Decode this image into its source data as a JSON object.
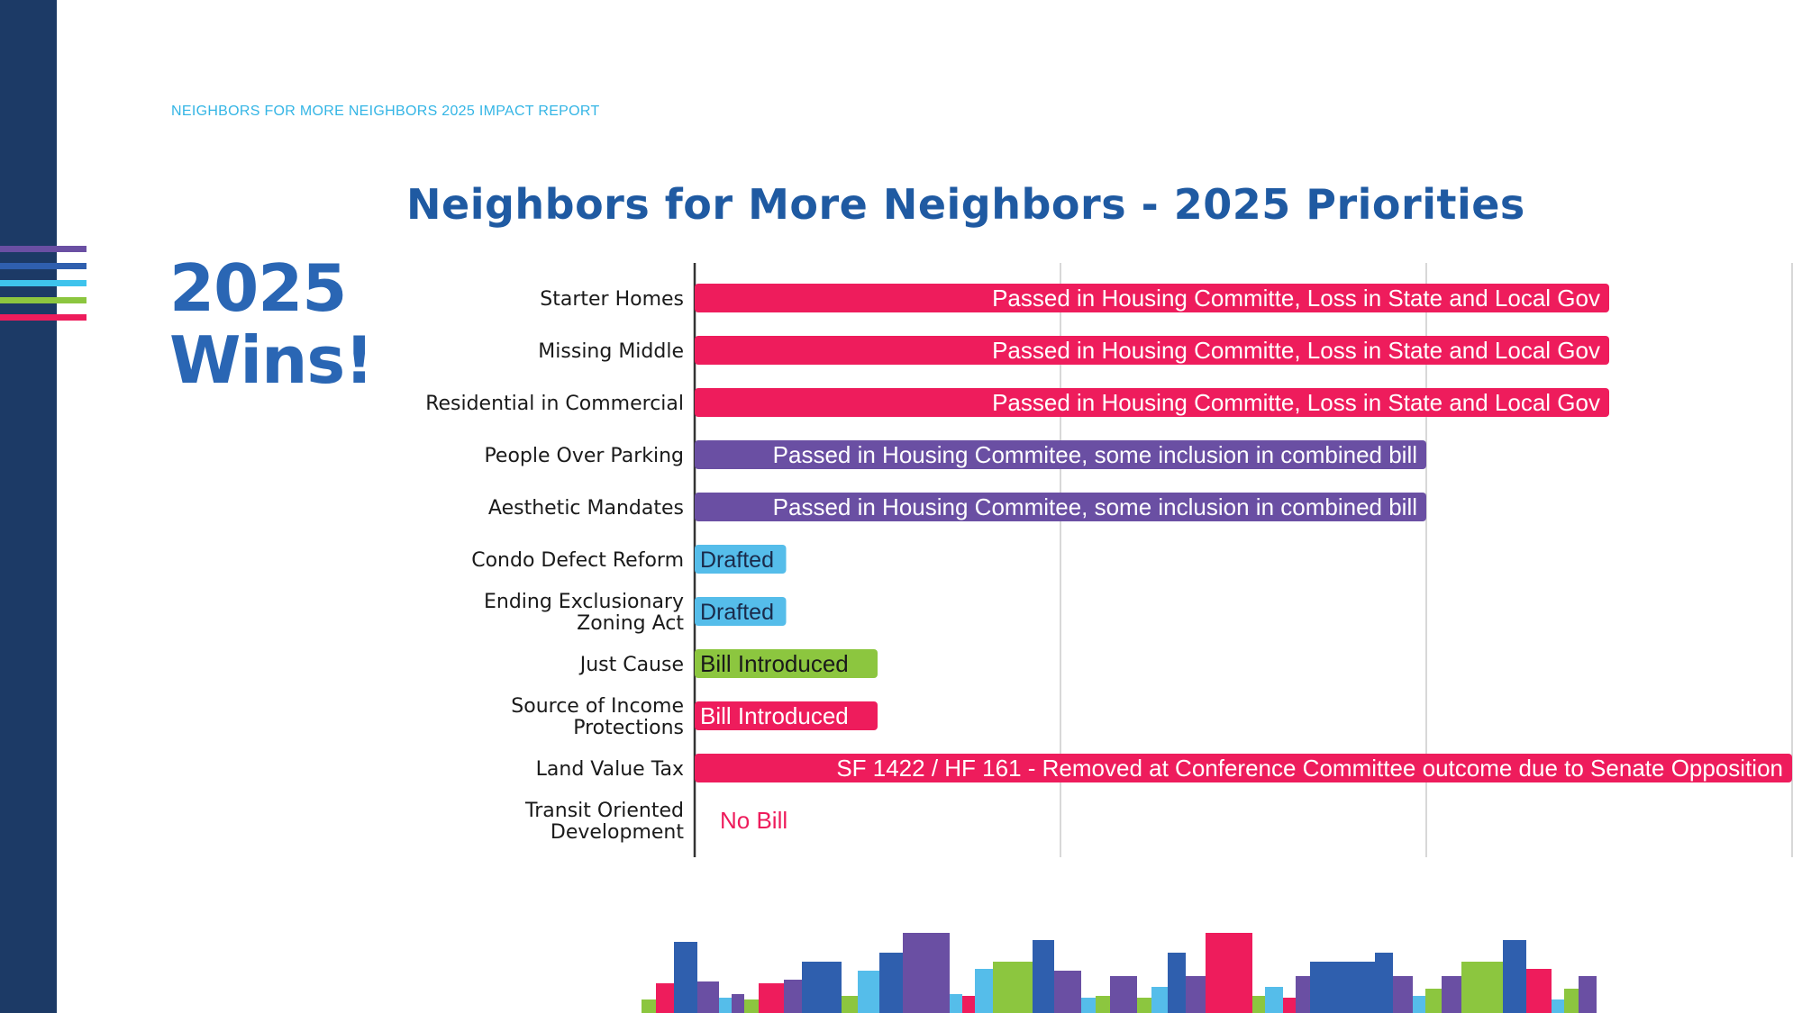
{
  "header": {
    "report_title": "NEIGHBORS FOR MORE NEIGHBORS 2025 IMPACT REPORT"
  },
  "headline": {
    "line1": "2025",
    "line2": "Wins!"
  },
  "colors": {
    "navy": "#1c3a66",
    "headline_blue": "#2a66b4",
    "header_cyan": "#34b5e5",
    "pink": "#ee1c5c",
    "purple": "#6a4fa3",
    "light_blue": "#55bdea",
    "green": "#8cc63f",
    "stripes": [
      "#6a4fa3",
      "#2f5fae",
      "#3ec3ec",
      "#8cc63f",
      "#ee1c5c"
    ]
  },
  "chart_data": {
    "type": "bar",
    "orientation": "horizontal",
    "title": "Neighbors for More Neighbors - 2025 Priorities",
    "xlabel": "",
    "ylabel": "",
    "xlim": [
      0,
      3
    ],
    "grid": true,
    "categories": [
      "Starter Homes",
      "Missing Middle",
      "Residential in Commercial",
      "People Over Parking",
      "Aesthetic Mandates",
      "Condo Defect Reform",
      "Ending Exclusionary Zoning Act",
      "Just Cause",
      "Source of Income Protections",
      "Land Value Tax",
      "Transit Oriented Development"
    ],
    "category_lines": [
      [
        "Starter Homes"
      ],
      [
        "Missing Middle"
      ],
      [
        "Residential in Commercial"
      ],
      [
        "People Over Parking"
      ],
      [
        "Aesthetic Mandates"
      ],
      [
        "Condo Defect Reform"
      ],
      [
        "Ending Exclusionary",
        "Zoning Act"
      ],
      [
        "Just Cause"
      ],
      [
        "Source of Income",
        "Protections"
      ],
      [
        "Land Value Tax"
      ],
      [
        "Transit Oriented",
        "Development"
      ]
    ],
    "values": [
      2.5,
      2.5,
      2.5,
      2.0,
      2.0,
      0.25,
      0.25,
      0.5,
      0.5,
      3.0,
      0
    ],
    "labels": [
      "Passed in Housing Committe, Loss in State and Local Gov",
      "Passed in Housing Committe, Loss in State and Local Gov",
      "Passed in Housing Committe, Loss in State and Local Gov",
      "Passed in Housing Commitee, some inclusion in combined bill",
      "Passed in Housing Commitee, some inclusion in combined bill",
      "Drafted",
      "Drafted",
      "Bill Introduced",
      "Bill Introduced",
      "SF 1422 / HF 161 - Removed at Conference Committee outcome due to Senate Opposition",
      "No Bill"
    ],
    "colors": [
      "#ee1c5c",
      "#ee1c5c",
      "#ee1c5c",
      "#6a4fa3",
      "#6a4fa3",
      "#55bdea",
      "#55bdea",
      "#8cc63f",
      "#ee1c5c",
      "#ee1c5c",
      "#ee1c5c"
    ],
    "label_colors": [
      "#ffffff",
      "#ffffff",
      "#ffffff",
      "#ffffff",
      "#ffffff",
      "#1a2a4a",
      "#1a2a4a",
      "#1a1a1a",
      "#ffffff",
      "#ffffff",
      "#ee1c5c"
    ],
    "label_align": [
      "end",
      "end",
      "end",
      "end",
      "end",
      "start",
      "start",
      "start",
      "start",
      "end",
      "start"
    ]
  }
}
